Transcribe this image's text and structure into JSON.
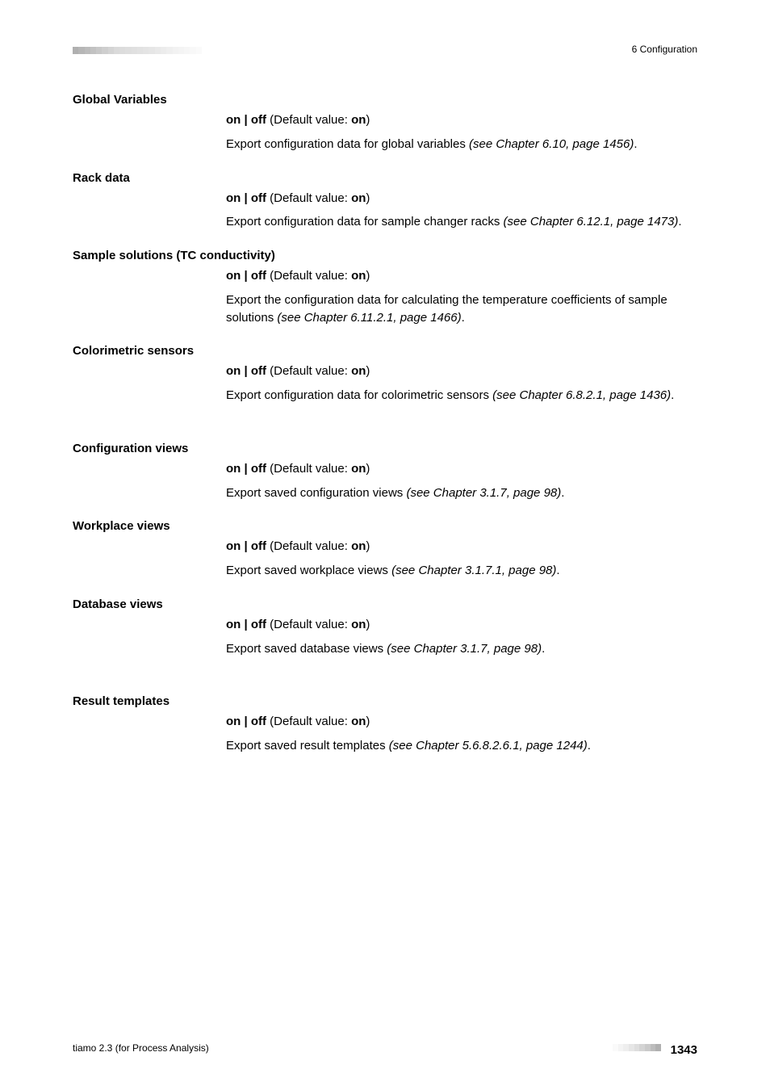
{
  "header": {
    "chapter": "6 Configuration",
    "bar_colors": [
      "#b0b0b0",
      "#b6b6b6",
      "#bcbcbc",
      "#c2c2c2",
      "#c8c8c8",
      "#cecece",
      "#d4d4d4",
      "#dadada",
      "#dcdcdc",
      "#dedede",
      "#e0e0e0",
      "#e2e2e2",
      "#e4e4e4",
      "#e6e6e6",
      "#e9e9e9",
      "#ececec",
      "#efefef",
      "#f2f2f2",
      "#f4f4f4",
      "#f6f6f6",
      "#f8f8f8",
      "#fafafa"
    ]
  },
  "footer": {
    "left": "tiamo 2.3 (for Process Analysis)",
    "page": "1343",
    "bar_colors": [
      "#fafafa",
      "#f4f4f4",
      "#eeeeee",
      "#e6e6e6",
      "#dedede",
      "#d4d4d4",
      "#cacaca",
      "#bcbcbc",
      "#b0b0b0"
    ]
  },
  "body": {
    "sections": [
      {
        "title": "Global Variables",
        "toggle_pre": "on | off",
        "toggle_mid": " (Default value: ",
        "toggle_val": "on",
        "toggle_post": ")",
        "desc_pre": "Export configuration data for global variables ",
        "desc_italic": "(see Chapter 6.10, page 1456)",
        "desc_post": "."
      },
      {
        "title": "Rack data",
        "toggle_pre": "on | off",
        "toggle_mid": " (Default value: ",
        "toggle_val": "on",
        "toggle_post": ")",
        "desc_pre": "Export configuration data for sample changer racks ",
        "desc_italic": "(see Chapter 6.12.1, page 1473)",
        "desc_post": "."
      },
      {
        "title": "Sample solutions (TC conductivity)",
        "toggle_pre": "on | off",
        "toggle_mid": " (Default value: ",
        "toggle_val": "on",
        "toggle_post": ")",
        "desc_pre": "Export the configuration data for calculating the temperature coefficients of sample solutions ",
        "desc_italic": "(see Chapter 6.11.2.1, page 1466)",
        "desc_post": "."
      },
      {
        "title": "Colorimetric sensors",
        "toggle_pre": "on | off",
        "toggle_mid": " (Default value: ",
        "toggle_val": "on",
        "toggle_post": ")",
        "desc_pre": "Export configuration data for colorimetric sensors ",
        "desc_italic": "(see Chapter 6.8.2.1, page 1436)",
        "desc_post": "."
      },
      {
        "title": "Configuration views",
        "toggle_pre": "on | off",
        "toggle_mid": " (Default value: ",
        "toggle_val": "on",
        "toggle_post": ")",
        "desc_pre": "Export saved configuration views ",
        "desc_italic": "(see Chapter 3.1.7, page 98)",
        "desc_post": "."
      },
      {
        "title": "Workplace views",
        "toggle_pre": "on | off",
        "toggle_mid": " (Default value: ",
        "toggle_val": "on",
        "toggle_post": ")",
        "desc_pre": "Export saved workplace views ",
        "desc_italic": "(see Chapter 3.1.7.1, page 98)",
        "desc_post": "."
      },
      {
        "title": "Database views",
        "toggle_pre": "on | off",
        "toggle_mid": " (Default value: ",
        "toggle_val": "on",
        "toggle_post": ")",
        "desc_pre": "Export saved database views ",
        "desc_italic": "(see Chapter 3.1.7, page 98)",
        "desc_post": "."
      },
      {
        "title": "Result templates",
        "toggle_pre": "on | off",
        "toggle_mid": " (Default value: ",
        "toggle_val": "on",
        "toggle_post": ")",
        "desc_pre": "Export saved result templates ",
        "desc_italic": "(see Chapter 5.6.8.2.6.1, page 1244)",
        "desc_post": "."
      }
    ],
    "extra_gap_after": [
      3,
      6
    ]
  }
}
